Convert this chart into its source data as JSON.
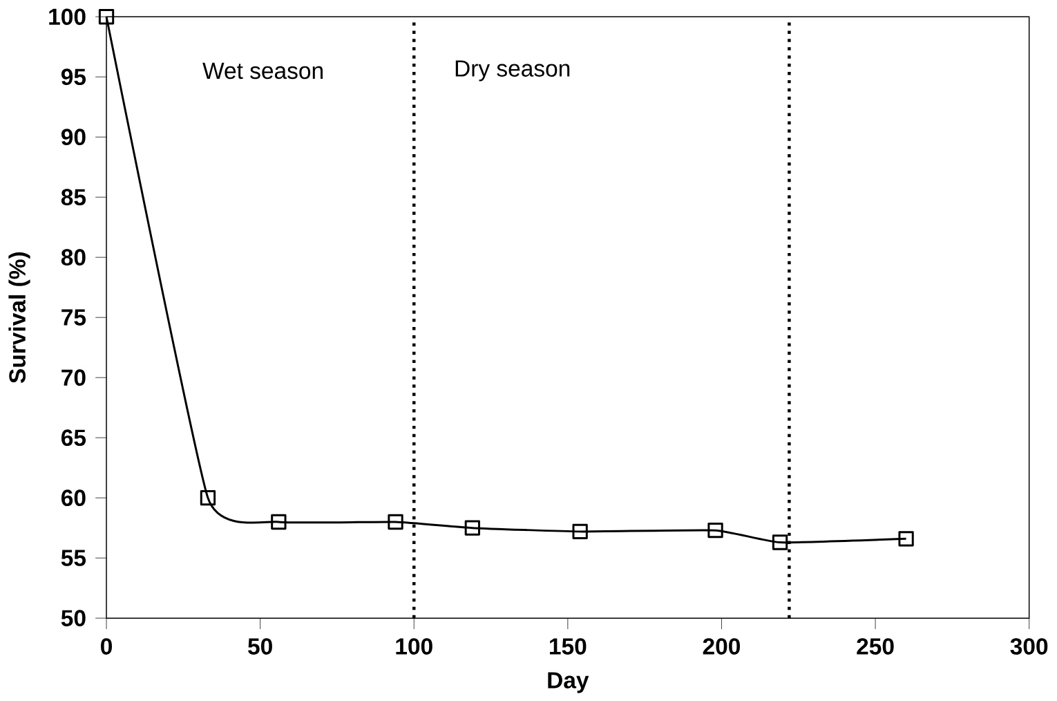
{
  "chart_data": {
    "type": "line",
    "xlabel": "Day",
    "ylabel": "Survival (%)",
    "x": [
      0,
      33,
      56,
      94,
      119,
      154,
      198,
      219,
      260
    ],
    "series": [
      {
        "color": "#000000",
        "values": [
          100,
          60,
          58,
          58,
          57.5,
          57.2,
          57.3,
          56.3,
          56.6
        ]
      }
    ],
    "xlim": [
      0,
      300
    ],
    "xticks": [
      0,
      50,
      100,
      150,
      200,
      250,
      300
    ],
    "ylim": [
      50,
      100
    ],
    "yticks": [
      50,
      55,
      60,
      65,
      70,
      75,
      80,
      85,
      90,
      95,
      100
    ],
    "marker": "square",
    "line_style": "solid",
    "grid": false,
    "ref_lines": [
      {
        "axis": "x",
        "value": 100,
        "line_style": "dotted"
      },
      {
        "axis": "x",
        "value": 222,
        "line_style": "dotted"
      }
    ],
    "annotations": [
      "Wet season",
      "Dry season"
    ]
  }
}
